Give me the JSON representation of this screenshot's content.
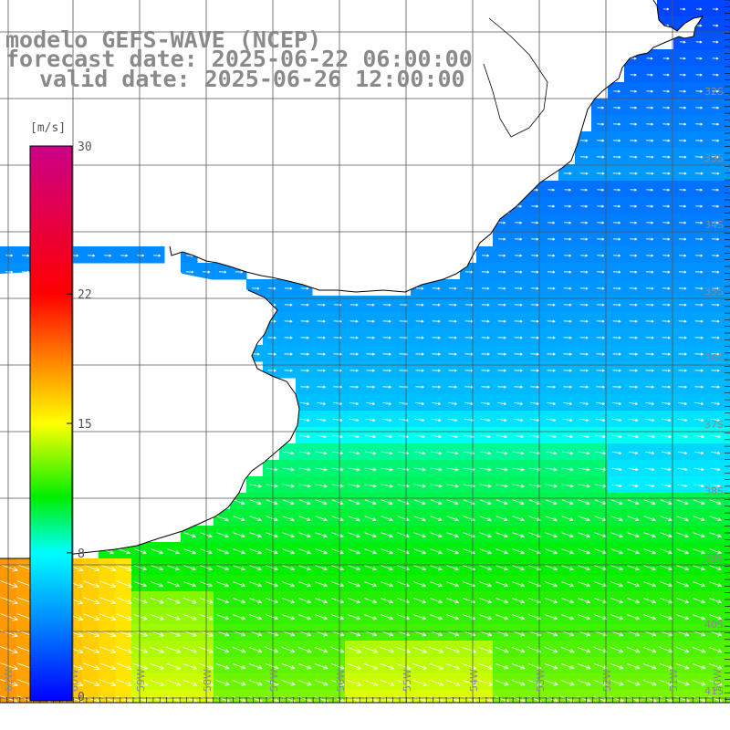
{
  "title": {
    "model": "modelo GEFS-WAVE (NCEP)",
    "forecast_date": "forecast date: 2025-06-22 06:00:00",
    "valid_date": "valid date: 2025-06-26 12:00:00"
  },
  "colorbar": {
    "unit": "[m/s]",
    "ticks": [
      {
        "label": "30",
        "value": 30
      },
      {
        "label": "22",
        "value": 22
      },
      {
        "label": "15",
        "value": 15
      },
      {
        "label": "8",
        "value": 8
      },
      {
        "label": "0",
        "value": 0
      }
    ],
    "stops": [
      {
        "value": 0,
        "color": "#0000ff"
      },
      {
        "value": 8,
        "color": "#00ffff"
      },
      {
        "value": 11,
        "color": "#00ee00"
      },
      {
        "value": 15,
        "color": "#ffff00"
      },
      {
        "value": 18.5,
        "color": "#ff8000"
      },
      {
        "value": 22,
        "color": "#ff0000"
      },
      {
        "value": 30,
        "color": "#cc0088"
      }
    ]
  },
  "axes": {
    "lon_labels": [
      "61W",
      "60W",
      "59W",
      "58W",
      "57W",
      "56W",
      "55W",
      "54W",
      "53W",
      "52W",
      "51W",
      "50W"
    ],
    "lat_labels": [
      "32S",
      "33S",
      "34S",
      "35S",
      "36S",
      "37S",
      "38S",
      "39S",
      "40S",
      "41S"
    ]
  },
  "colors": {
    "land": "#ffffff",
    "coast": "#000000",
    "grid": "#555555",
    "arrows": "#ffffff",
    "label_text": "#8a8a8a"
  }
}
